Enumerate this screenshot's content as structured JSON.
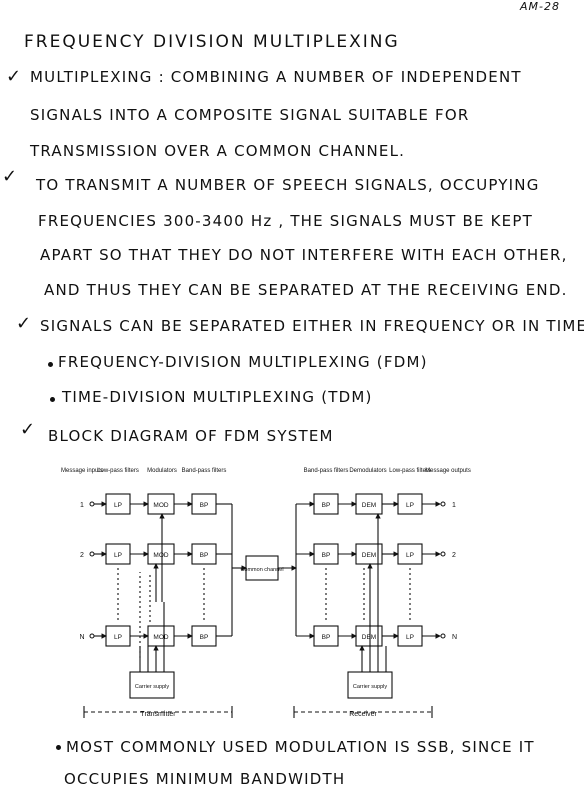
{
  "page_number": "AM-28",
  "title": "FREQUENCY DIVISION MULTIPLEXING",
  "lines": {
    "l1": "MULTIPLEXING : COMBINING A NUMBER OF INDEPENDENT",
    "l2": "SIGNALS INTO A COMPOSITE SIGNAL SUITABLE FOR",
    "l3": "TRANSMISSION OVER A COMMON CHANNEL.",
    "l4": "TO TRANSMIT A NUMBER OF SPEECH SIGNALS, OCCUPYING",
    "l5": "FREQUENCIES 300-3400 Hz , THE SIGNALS MUST BE KEPT",
    "l6": "APART SO THAT THEY DO NOT INTERFERE WITH EACH OTHER,",
    "l7": "AND THUS THEY CAN BE SEPARATED AT THE RECEIVING END.",
    "l8": "SIGNALS CAN BE SEPARATED EITHER IN FREQUENCY OR IN TIME.",
    "l9": "FREQUENCY-DIVISION MULTIPLEXING (FDM)",
    "l10": "TIME-DIVISION MULTIPLEXING (TDM)",
    "l11": "BLOCK DIAGRAM OF FDM SYSTEM",
    "l12": "MOST COMMONLY USED MODULATION IS SSB, SINCE IT",
    "l13": "OCCUPIES MINIMUM BANDWIDTH"
  },
  "diagram": {
    "headers": {
      "message_inputs": "Message inputs",
      "lowpass_filters": "Low-pass filters",
      "modulators": "Modulators",
      "bandpass_filters": "Band-pass filters",
      "bandpass_filters_rx": "Band-pass filters",
      "demodulators": "Demodulators",
      "lowpass_filters_rx": "Low-pass filters",
      "message_outputs": "Message outputs"
    },
    "blocks": {
      "lp": "LP",
      "mod": "MOD",
      "bp": "BP",
      "dem": "DEM"
    },
    "common_channel": "Common channel",
    "carrier_supply": "Carrier supply",
    "transmitter": "Transmitter",
    "receiver": "Receiver",
    "inputs": [
      "1",
      "2",
      "N"
    ],
    "outputs": [
      "1",
      "2",
      "N"
    ]
  }
}
